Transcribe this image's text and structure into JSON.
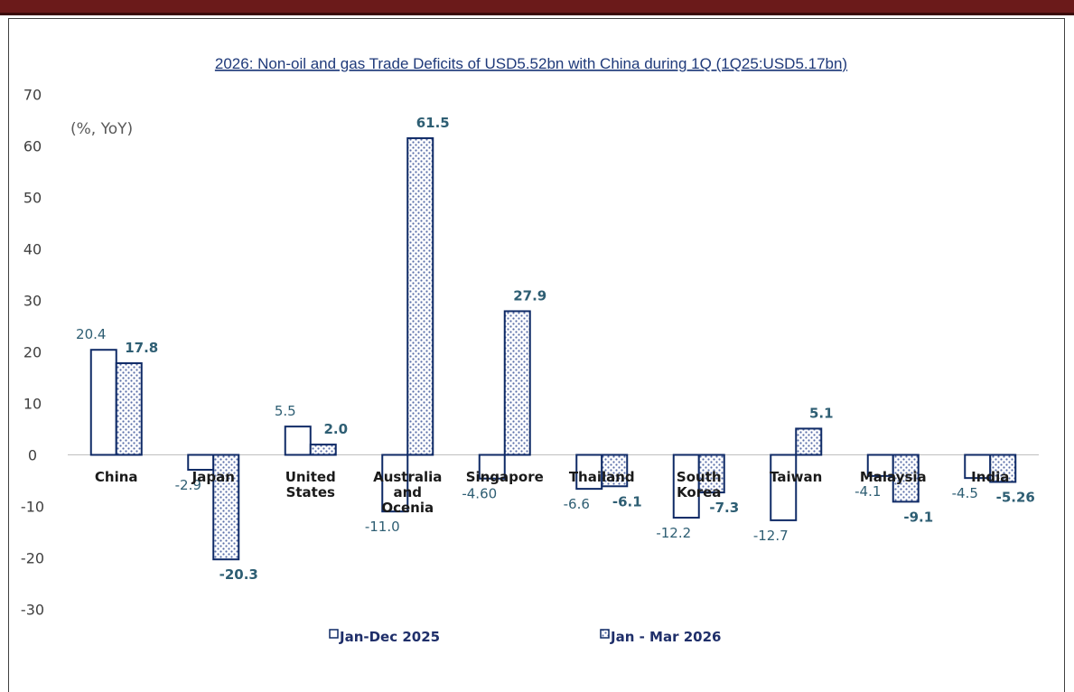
{
  "chart_data": {
    "type": "bar",
    "title": "2026:  Non-oil and gas Trade Deficits of USD5.52bn with China during 1Q (1Q25:USD5.17bn)",
    "unit_label": "(%, YoY)",
    "categories": [
      [
        "China"
      ],
      [
        "Japan"
      ],
      [
        "United",
        "States"
      ],
      [
        "Australia",
        "and",
        "Ocenia"
      ],
      [
        "Singapore"
      ],
      [
        "Thailand"
      ],
      [
        "South",
        "Korea"
      ],
      [
        "Taiwan"
      ],
      [
        "Malaysia"
      ],
      [
        "India"
      ]
    ],
    "series": [
      {
        "name": "Jan-Dec 2025",
        "values": [
          20.4,
          -2.9,
          5.5,
          -11.0,
          -4.6,
          -6.6,
          -12.2,
          -12.7,
          -4.1,
          -4.5
        ],
        "labels": [
          "20.4",
          "-2.9",
          "5.5",
          "-11.0",
          "-4.60",
          "-6.6",
          "-12.2",
          "-12.7",
          "-4.1",
          "-4.5"
        ]
      },
      {
        "name": "Jan - Mar 2026",
        "values": [
          17.8,
          -20.3,
          2.0,
          61.5,
          27.9,
          -6.1,
          -7.3,
          5.1,
          -9.1,
          -5.26
        ],
        "labels": [
          "17.8",
          "-20.3",
          "2.0",
          "61.5",
          "27.9",
          "-6.1",
          "-7.3",
          "5.1",
          "-9.1",
          "-5.26"
        ]
      }
    ],
    "ylim": [
      -30,
      70
    ],
    "yticks": [
      70,
      60,
      50,
      40,
      30,
      20,
      10,
      0,
      -10,
      -20,
      -30
    ],
    "grid": false,
    "legend_position": "bottom",
    "colors": {
      "outline": "#0f2a66",
      "pattern_dot": "#5a6fa8",
      "label": "#2e5e73",
      "header_bar": "#6b1a1a"
    }
  }
}
